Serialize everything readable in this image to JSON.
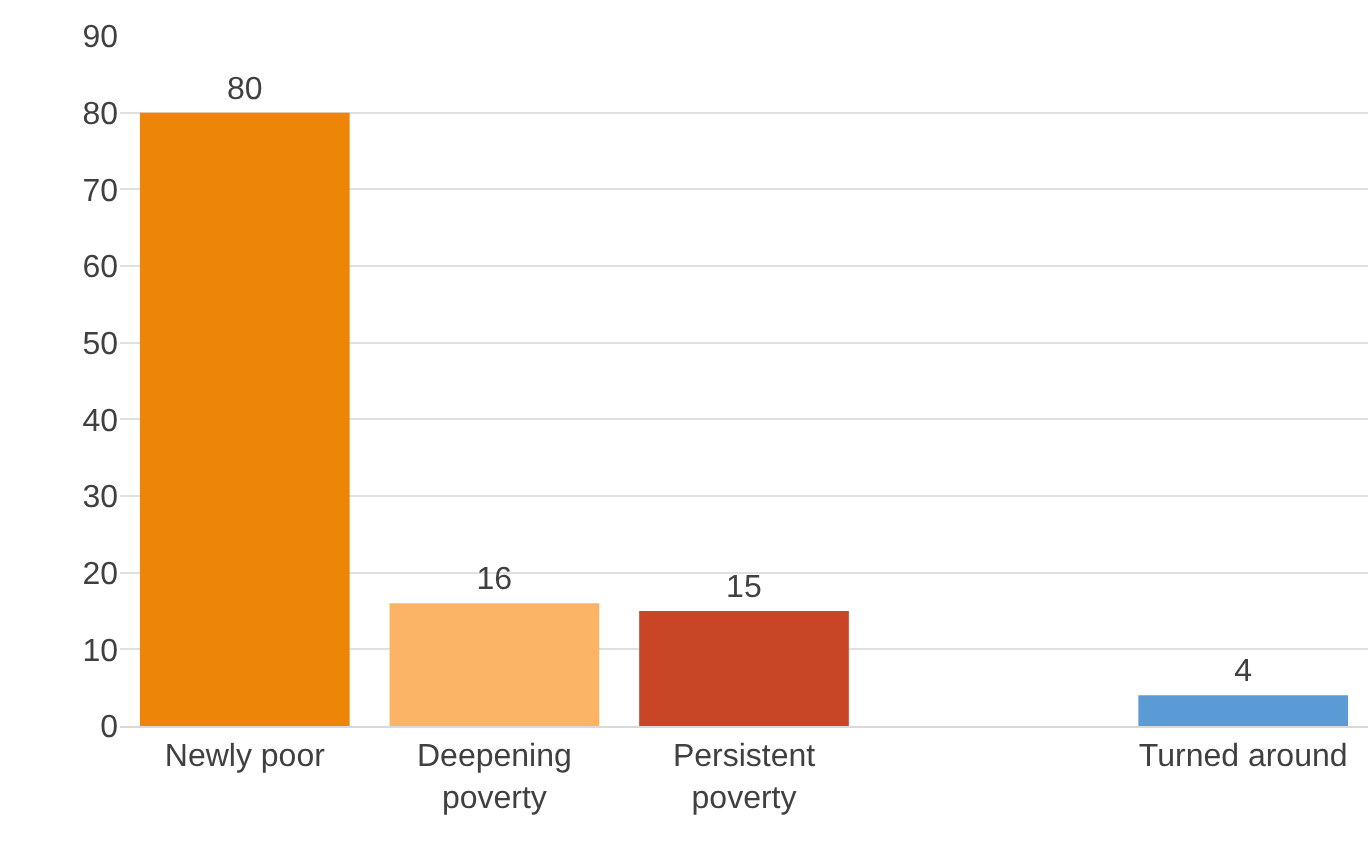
{
  "chart_data": {
    "type": "bar",
    "categories": [
      "Newly poor",
      "Deepening poverty",
      "Persistent poverty",
      null,
      "Turned around"
    ],
    "values": [
      80,
      16,
      15,
      null,
      4
    ],
    "colors": [
      "#ec8508",
      "#fbb465",
      "#c84626",
      "#ffffff",
      "#5b9bd5"
    ],
    "ylim": [
      0,
      90
    ],
    "yticks": [
      0,
      10,
      20,
      30,
      40,
      50,
      60,
      70,
      80,
      90
    ],
    "grid": "y",
    "data_labels": true
  }
}
